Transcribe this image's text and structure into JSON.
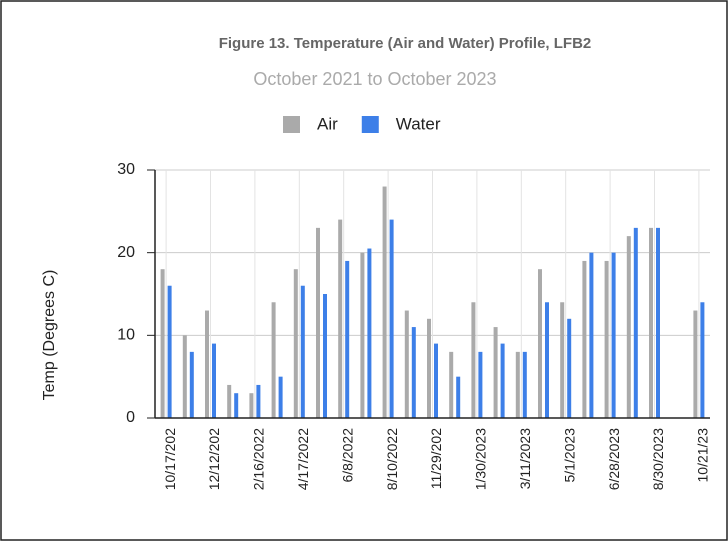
{
  "chart_data": {
    "type": "bar",
    "title": "Figure 13. Temperature (Air and Water) Profile, LFB2",
    "subtitle": "October 2021 to October 2023",
    "y_label": "Temp (Degrees C)",
    "categories": [
      "10/17/202",
      null,
      "12/12/202",
      null,
      "2/16/2022",
      null,
      "4/17/2022",
      null,
      "6/8/2022",
      null,
      "8/10/2022",
      null,
      "11/29/202",
      null,
      "1/30/2023",
      null,
      "3/11/2023",
      null,
      "5/1/2023",
      null,
      "6/28/2023",
      null,
      "8/30/2023",
      null,
      "10/21/23"
    ],
    "series": [
      {
        "name": "Air",
        "color": "#aaaaaa",
        "values": [
          18,
          10,
          13,
          4,
          3,
          14,
          18,
          23,
          24,
          20,
          28,
          13,
          12,
          8,
          14,
          11,
          8,
          18,
          14,
          19,
          19,
          22,
          23,
          null,
          13
        ]
      },
      {
        "name": "Water",
        "color": "#3d7fe8",
        "values": [
          16,
          8,
          9,
          3,
          4,
          5,
          16,
          15,
          19,
          20.5,
          24,
          11,
          9,
          5,
          8,
          9,
          8,
          14,
          12,
          20,
          20,
          23,
          23,
          null,
          14
        ]
      }
    ],
    "ylim": [
      0,
      30
    ],
    "yticks": [
      0,
      10,
      20,
      30
    ],
    "grid": true,
    "legend": "top"
  }
}
